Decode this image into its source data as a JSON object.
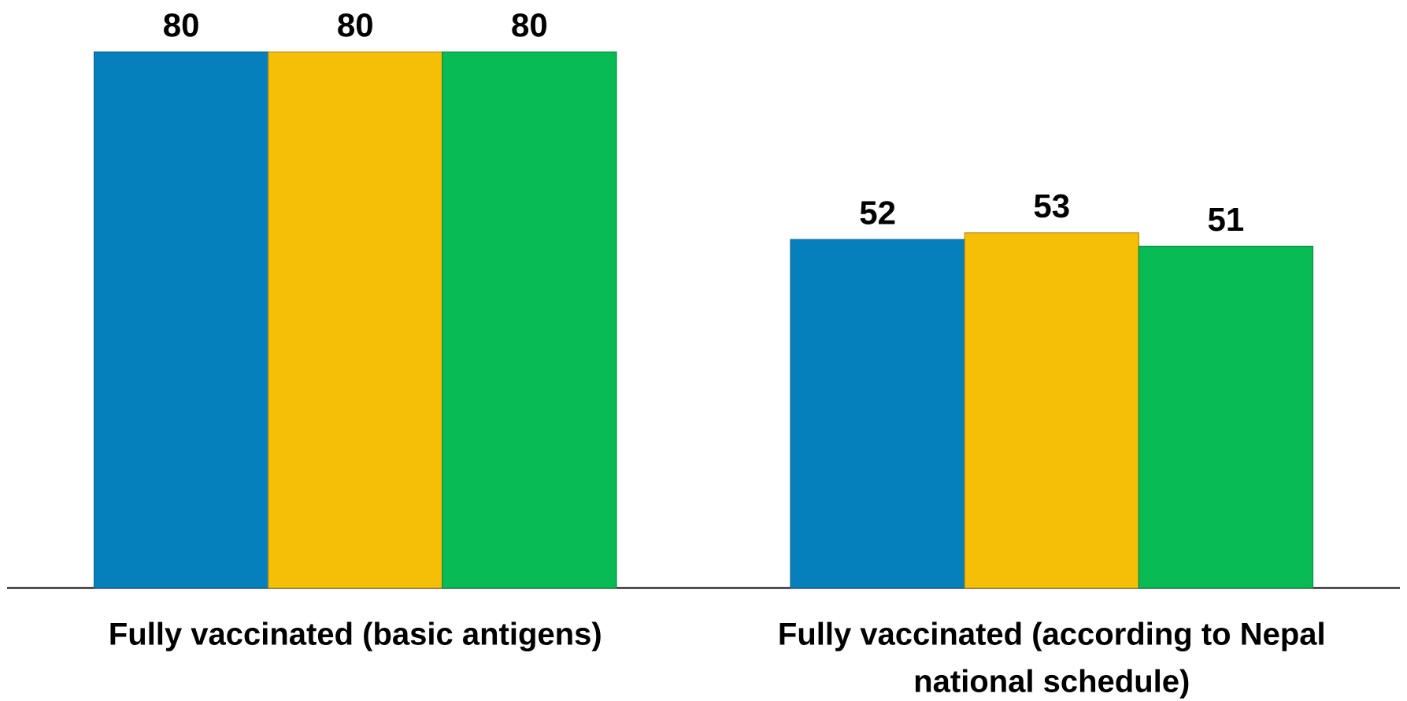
{
  "chart_data": {
    "type": "bar",
    "categories": [
      "Fully vaccinated (basic antigens)",
      "Fully vaccinated (according to Nepal national schedule)"
    ],
    "series": [
      {
        "color": "#0680bc",
        "values": [
          80,
          52
        ]
      },
      {
        "color": "#f5bf08",
        "values": [
          80,
          53
        ]
      },
      {
        "color": "#08bb55",
        "values": [
          80,
          51
        ]
      }
    ],
    "data_labels": true
  }
}
